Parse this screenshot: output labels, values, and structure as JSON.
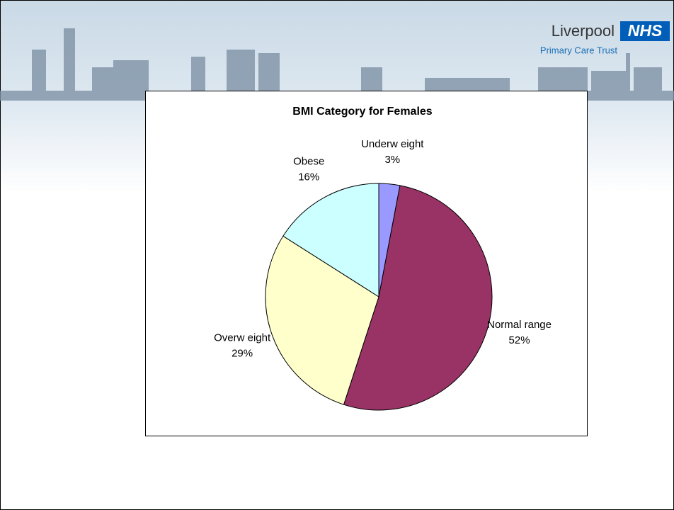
{
  "header": {
    "org": "Liverpool",
    "logo": "NHS",
    "subtitle": "Primary Care Trust"
  },
  "chart_data": {
    "type": "pie",
    "title": "BMI Category for Females",
    "categories": [
      "Underw eight",
      "Normal range",
      "Overw eight",
      "Obese"
    ],
    "values": [
      3,
      52,
      29,
      16
    ],
    "value_labels": [
      "3%",
      "52%",
      "29%",
      "16%"
    ],
    "colors": [
      "#9999ff",
      "#993366",
      "#ffffcc",
      "#ccffff"
    ]
  }
}
